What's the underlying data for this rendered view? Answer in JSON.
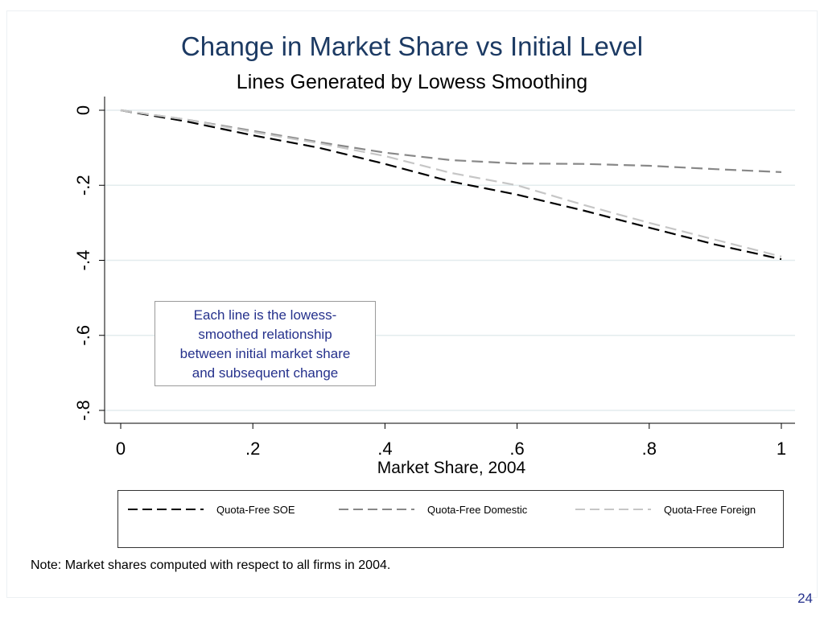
{
  "slide": {
    "note": "Note: Market shares computed with respect to all firms in 2004.",
    "page_number": "24"
  },
  "chart_data": {
    "type": "line",
    "title": "Change in Market Share vs Initial Level",
    "subtitle": "Lines Generated by Lowess Smoothing",
    "xlabel": "Market Share, 2004",
    "ylabel": "",
    "xlim": [
      0,
      1
    ],
    "ylim": [
      -0.8,
      0
    ],
    "xticks": [
      0,
      0.2,
      0.4,
      0.6,
      0.8,
      1
    ],
    "xtick_labels": [
      "0",
      ".2",
      ".4",
      ".6",
      ".8",
      "1"
    ],
    "yticks": [
      0,
      -0.2,
      -0.4,
      -0.6,
      -0.8
    ],
    "ytick_labels": [
      "0",
      "-.2",
      "-.4",
      "-.6",
      "-.8"
    ],
    "grid": true,
    "legend_position": "bottom",
    "annotation": [
      "Each line is the lowess-",
      "smoothed relationship",
      "between initial market share",
      "and subsequent change"
    ],
    "series": [
      {
        "name": "Quota-Free SOE",
        "color": "#000000",
        "x": [
          0,
          0.1,
          0.2,
          0.3,
          0.4,
          0.5,
          0.6,
          0.7,
          0.8,
          0.9,
          1.0
        ],
        "y": [
          0,
          -0.03,
          -0.067,
          -0.1,
          -0.143,
          -0.19,
          -0.225,
          -0.267,
          -0.313,
          -0.358,
          -0.397
        ]
      },
      {
        "name": "Quota-Free Domestic",
        "color": "#888888",
        "x": [
          0,
          0.1,
          0.2,
          0.3,
          0.4,
          0.5,
          0.6,
          0.7,
          0.8,
          0.9,
          1.0
        ],
        "y": [
          0,
          -0.025,
          -0.055,
          -0.085,
          -0.113,
          -0.133,
          -0.142,
          -0.143,
          -0.148,
          -0.157,
          -0.165
        ]
      },
      {
        "name": "Quota-Free Foreign",
        "color": "#c6c6c6",
        "x": [
          0,
          0.1,
          0.2,
          0.3,
          0.4,
          0.5,
          0.6,
          0.7,
          0.8,
          0.9,
          1.0
        ],
        "y": [
          0,
          -0.025,
          -0.058,
          -0.088,
          -0.122,
          -0.167,
          -0.2,
          -0.252,
          -0.3,
          -0.345,
          -0.39
        ]
      }
    ]
  }
}
